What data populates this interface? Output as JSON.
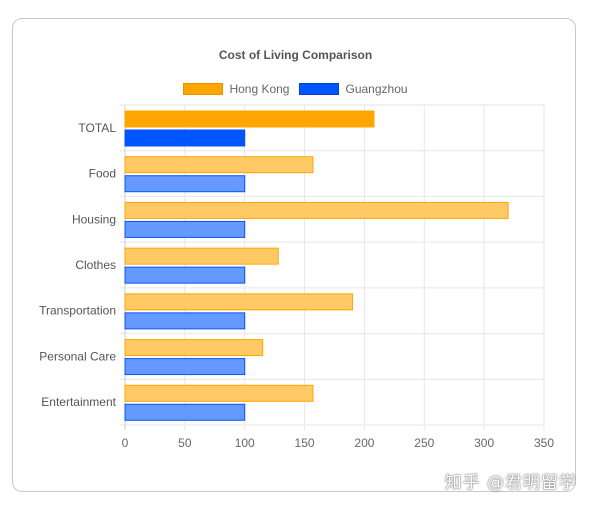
{
  "chart_data": {
    "type": "bar",
    "orientation": "horizontal",
    "title": "Cost of Living Comparison",
    "categories": [
      "TOTAL",
      "Food",
      "Housing",
      "Clothes",
      "Transportation",
      "Personal Care",
      "Entertainment"
    ],
    "series": [
      {
        "name": "Hong Kong",
        "values": [
          208,
          157,
          320,
          128,
          190,
          115,
          157
        ],
        "color": "#ffa500",
        "fill_light": "#ffc966"
      },
      {
        "name": "Guangzhou",
        "values": [
          100,
          100,
          100,
          100,
          100,
          100,
          100
        ],
        "color": "#0055ff",
        "fill_light": "#6699ff"
      }
    ],
    "xlim": [
      0,
      350
    ],
    "xticks": [
      "0",
      "50",
      "100",
      "150",
      "200",
      "250",
      "300",
      "350"
    ],
    "grid": true,
    "legend": "top"
  },
  "watermark": "知乎 @君明留学"
}
